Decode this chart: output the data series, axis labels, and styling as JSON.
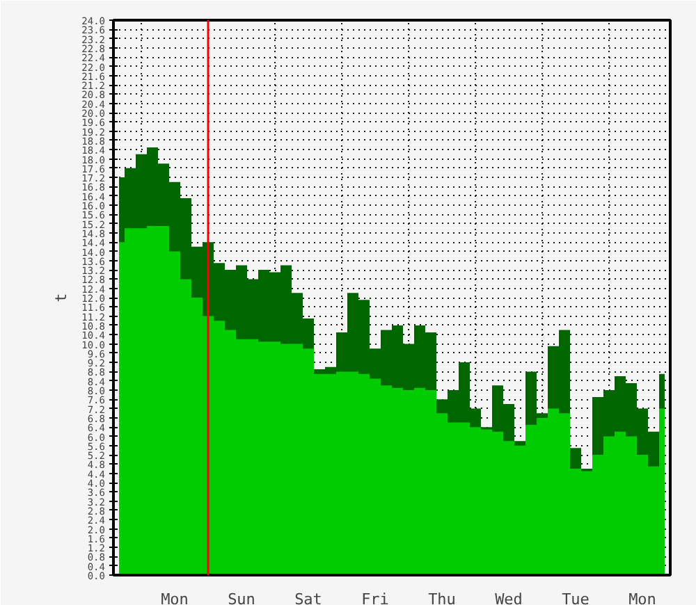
{
  "chart_data": {
    "type": "area",
    "ylabel": "t",
    "categories": [
      null,
      null,
      null,
      null,
      null,
      "Mon",
      null,
      null,
      null,
      null,
      null,
      "Sun",
      null,
      null,
      null,
      null,
      null,
      "Sat",
      null,
      null,
      null,
      null,
      null,
      "Fri",
      null,
      null,
      null,
      null,
      null,
      "Thu",
      null,
      null,
      null,
      null,
      null,
      "Wed",
      null,
      null,
      null,
      null,
      null,
      "Tue",
      null,
      null,
      null,
      null,
      null,
      "Mon",
      null,
      null
    ],
    "ylim": [
      0,
      24
    ],
    "yticks": [
      {
        "value": 0,
        "label": "0.0"
      },
      0.4,
      0.8,
      1.2,
      1.6,
      {
        "value": 2,
        "label": "2.0"
      },
      2.4,
      2.8,
      3.2,
      3.6,
      {
        "value": 4,
        "label": "4.0"
      },
      4.4,
      4.8,
      5.2,
      5.6,
      {
        "value": 6,
        "label": "6.0"
      },
      6.4,
      6.8,
      7.2,
      7.6,
      {
        "value": 8,
        "label": "8.0"
      },
      8.4,
      8.8,
      9.2,
      9.6,
      {
        "value": 10,
        "label": "10.0"
      },
      10.4,
      10.8,
      11.2,
      11.6,
      {
        "value": 12,
        "label": "12.0"
      },
      12.4,
      12.8,
      13.2,
      13.6,
      {
        "value": 14,
        "label": "14.0"
      },
      14.4,
      14.8,
      15.2,
      15.6,
      {
        "value": 16,
        "label": "16.0"
      },
      16.4,
      16.8,
      17.2,
      17.6,
      {
        "value": 18,
        "label": "18.0"
      },
      18.4,
      18.8,
      19.2,
      19.6,
      {
        "value": 20,
        "label": "20.0"
      },
      20.4,
      20.8,
      21.2,
      21.6,
      {
        "value": 22,
        "label": "22.0"
      },
      22.4,
      22.8,
      23.2,
      23.6,
      {
        "value": 24,
        "label": "24.0"
      }
    ],
    "grid": true,
    "series": [
      {
        "color": "#006600",
        "values": [
          17.2,
          17.6,
          18.2,
          18.5,
          17.8,
          17.0,
          16.3,
          14.2,
          14.4,
          13.5,
          13.2,
          13.4,
          12.8,
          13.2,
          13.1,
          13.4,
          12.2,
          11.1,
          8.9,
          9.0,
          10.5,
          12.2,
          11.9,
          9.8,
          10.6,
          10.8,
          10.0,
          10.8,
          10.5,
          7.6,
          8.0,
          9.2,
          7.2,
          6.4,
          8.2,
          7.4,
          5.8,
          8.8,
          7.0,
          9.9,
          10.6,
          5.5,
          4.6,
          7.7,
          8.0,
          8.6,
          8.3,
          7.2,
          6.2,
          8.7
        ]
      },
      {
        "color": "#00cc00",
        "values": [
          14.4,
          15.0,
          15.0,
          15.1,
          15.1,
          14.0,
          12.8,
          12.0,
          11.2,
          11.0,
          10.6,
          10.2,
          10.2,
          10.1,
          10.1,
          10.0,
          10.0,
          9.8,
          8.7,
          8.7,
          8.8,
          8.8,
          8.7,
          8.5,
          8.2,
          8.1,
          8.0,
          8.1,
          8.0,
          7.0,
          6.6,
          6.6,
          6.4,
          6.3,
          6.2,
          5.8,
          5.6,
          6.5,
          6.8,
          7.2,
          7.0,
          4.6,
          4.5,
          5.2,
          6.0,
          6.2,
          6.0,
          5.2,
          4.7,
          7.2
        ]
      }
    ]
  }
}
